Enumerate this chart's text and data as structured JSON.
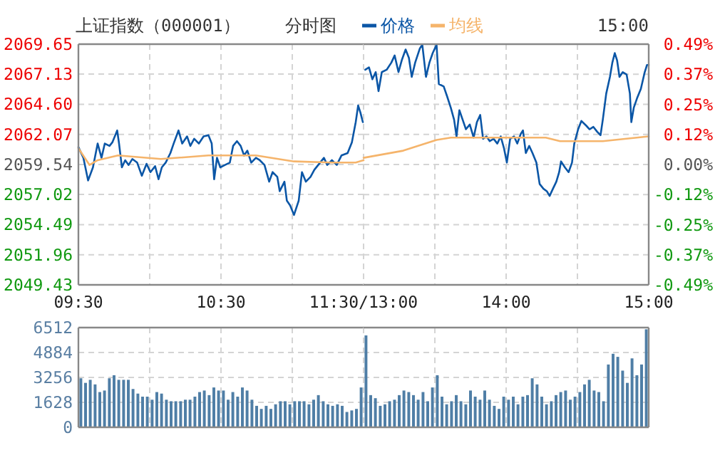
{
  "chart_data": [
    {
      "type": "line",
      "title": "上证指数（000001）",
      "subtitle": "分时图",
      "legend": "top",
      "grid": true,
      "xlim": [
        9.5,
        11.5
      ],
      "xticks": [
        {
          "value": 9.5,
          "label": "09:30"
        },
        {
          "value": 10.5,
          "label": "10:30"
        },
        {
          "value": 11.5,
          "label": "11:30/13:00"
        }
      ],
      "ylim": [
        2049.43,
        2069.65
      ],
      "yticks": [
        2049.43,
        2051.96,
        2054.49,
        2057.02,
        2059.54,
        2062.07,
        {
          "value": 2064.6,
          "label": "2064.60"
        },
        2067.13,
        2069.65
      ],
      "series": [
        {
          "name": "价格",
          "color": "#0b56a6",
          "x": [
            9.5,
            9.535,
            9.568,
            9.602,
            9.635,
            9.662,
            9.685,
            9.718,
            9.738,
            9.772,
            9.785,
            9.805,
            9.828,
            9.852,
            9.878,
            9.912,
            9.945,
            9.978,
            10.005,
            10.038,
            10.062,
            10.085,
            10.112,
            10.145,
            10.168,
            10.202,
            10.228,
            10.262,
            10.285,
            10.312,
            10.345,
            10.378,
            10.412,
            10.435,
            10.452,
            10.472,
            10.495,
            10.528,
            10.562,
            10.585,
            10.612,
            10.638,
            10.662,
            10.685,
            10.712,
            10.745,
            10.772,
            10.805,
            10.838,
            10.862,
            10.895,
            10.912,
            10.945,
            10.962,
            10.985,
            11.012,
            11.045,
            11.068,
            11.095,
            11.128,
            11.155,
            11.195,
            11.222,
            11.245,
            11.278,
            11.312,
            11.345,
            11.388,
            11.418,
            11.445,
            11.462,
            11.478,
            11.495
          ],
          "values": [
            2061.0,
            2060.1,
            2058.2,
            2059.3,
            2061.3,
            2060.1,
            2061.3,
            2061.1,
            2061.4,
            2062.4,
            2061.3,
            2059.3,
            2059.9,
            2059.5,
            2060.0,
            2059.7,
            2058.6,
            2059.6,
            2058.9,
            2059.4,
            2058.3,
            2059.3,
            2059.7,
            2060.5,
            2061.3,
            2062.4,
            2061.3,
            2061.9,
            2061.1,
            2061.7,
            2061.3,
            2061.9,
            2062.0,
            2061.3,
            2058.3,
            2060.1,
            2059.3,
            2059.5,
            2059.7,
            2061.1,
            2061.5,
            2061.1,
            2060.3,
            2060.7,
            2059.7,
            2060.1,
            2059.9,
            2059.5,
            2058.1,
            2058.9,
            2058.5,
            2057.3,
            2058.1,
            2056.5,
            2056.1,
            2055.3,
            2056.5,
            2058.9,
            2058.1,
            2058.5,
            2059.1,
            2059.7,
            2060.1,
            2059.5,
            2059.9,
            2059.5,
            2060.3,
            2060.5,
            2061.4,
            2063.1,
            2064.5,
            2063.9,
            2063.1
          ]
        },
        {
          "name": "均线",
          "color": "#f5b46b",
          "x": [
            9.5,
            9.578,
            9.635,
            9.778,
            10.078,
            10.412,
            10.745,
            11.012,
            11.278,
            11.445,
            11.5
          ],
          "values": [
            2060.9,
            2059.5,
            2059.9,
            2060.3,
            2060.0,
            2060.3,
            2060.3,
            2059.8,
            2059.7,
            2059.7,
            2059.9
          ]
        }
      ]
    },
    {
      "type": "line",
      "annotations": [
        "15:00"
      ],
      "grid": true,
      "tick_labels": "x",
      "xlim": [
        13,
        15
      ],
      "xticks": [
        {
          "value": 14,
          "label": "14:00"
        },
        {
          "value": 15,
          "label": "15:00"
        }
      ],
      "ylim": [
        2049.43,
        2069.65
      ],
      "y2lim": [
        -0.49,
        0.49
      ],
      "y2ticks": [
        {
          "value": -0.49,
          "label": "-0.49%"
        },
        {
          "value": -0.3675,
          "label": "-0.37%"
        },
        {
          "value": -0.245,
          "label": "-0.25%"
        },
        {
          "value": -0.1225,
          "label": "-0.12%"
        },
        {
          "value": 0,
          "label": "0.00%"
        },
        {
          "value": 0.1225,
          "label": "0.12%"
        },
        {
          "value": 0.245,
          "label": "0.25%"
        },
        {
          "value": 0.3675,
          "label": "0.37%"
        },
        {
          "value": 0.49,
          "label": "0.49%"
        }
      ],
      "series": [
        {
          "color": "#0b56a6",
          "x": [
            13.012,
            13.038,
            13.062,
            13.085,
            13.105,
            13.128,
            13.162,
            13.195,
            13.218,
            13.245,
            13.268,
            13.295,
            13.318,
            13.338,
            13.362,
            13.395,
            13.412,
            13.438,
            13.462,
            13.485,
            13.512,
            13.528,
            13.562,
            13.585,
            13.612,
            13.635,
            13.652,
            13.672,
            13.695,
            13.718,
            13.745,
            13.772,
            13.795,
            13.818,
            13.838,
            13.862,
            13.885,
            13.912,
            13.938,
            13.962,
            13.985,
            14.005,
            14.028,
            14.055,
            14.078,
            14.102,
            14.118,
            14.138,
            14.162,
            14.185,
            14.212,
            14.235,
            14.262,
            14.285,
            14.305,
            14.328,
            14.352,
            14.372,
            14.385,
            14.412,
            14.438,
            14.462,
            14.478,
            14.505,
            14.528,
            14.562,
            14.585,
            14.612,
            14.638,
            14.662,
            14.678,
            14.702,
            14.728,
            14.745,
            14.762,
            14.778,
            14.795,
            14.818,
            14.845,
            14.868,
            14.878,
            14.895,
            14.918,
            14.945,
            14.972,
            14.988,
            15
          ],
          "values": [
            2067.5,
            2067.7,
            2066.7,
            2067.3,
            2065.7,
            2067.3,
            2067.5,
            2068.1,
            2068.7,
            2067.3,
            2068.3,
            2069.2,
            2068.5,
            2066.9,
            2068.1,
            2069.3,
            2069.6,
            2066.9,
            2068.1,
            2068.9,
            2069.6,
            2066.3,
            2066.1,
            2065.3,
            2064.3,
            2063.3,
            2061.9,
            2064.1,
            2063.3,
            2062.5,
            2062.9,
            2061.8,
            2063.1,
            2063.7,
            2061.7,
            2061.9,
            2061.5,
            2061.7,
            2061.3,
            2061.9,
            2060.9,
            2059.7,
            2061.7,
            2061.9,
            2061.3,
            2062.1,
            2062.4,
            2060.5,
            2061.1,
            2060.5,
            2059.7,
            2057.9,
            2057.5,
            2057.3,
            2056.9,
            2057.5,
            2058.1,
            2058.9,
            2059.8,
            2059.3,
            2058.9,
            2059.7,
            2061.3,
            2062.5,
            2063.2,
            2062.8,
            2062.5,
            2062.7,
            2062.3,
            2062.0,
            2063.3,
            2065.5,
            2066.9,
            2068.1,
            2068.9,
            2068.3,
            2066.9,
            2067.3,
            2067.1,
            2065.5,
            2063.1,
            2064.3,
            2065.1,
            2065.9,
            2067.3,
            2067.9,
            2067.9
          ]
        },
        {
          "color": "#f5b46b",
          "x": [
            13,
            13.278,
            13.512,
            13.612,
            14.278,
            14.378,
            14.678,
            15
          ],
          "values": [
            2060.1,
            2060.7,
            2061.6,
            2061.8,
            2061.8,
            2061.5,
            2061.5,
            2061.9
          ]
        }
      ]
    },
    {
      "type": "bar",
      "grid": true,
      "tick_labels": "y",
      "color": "#4f7ea6",
      "xlim": [
        9.5,
        11.5
      ],
      "xticks": [
        9.5,
        10.5,
        11.5
      ],
      "ylim": [
        0,
        6512
      ],
      "yticks": [
        0,
        1628,
        3256,
        4884,
        6512
      ],
      "x": [
        9.517,
        9.55,
        9.583,
        9.617,
        9.65,
        9.683,
        9.717,
        9.75,
        9.783,
        9.817,
        9.85,
        9.883,
        9.917,
        9.95,
        9.983,
        10.017,
        10.05,
        10.083,
        10.117,
        10.15,
        10.183,
        10.217,
        10.25,
        10.283,
        10.317,
        10.35,
        10.383,
        10.417,
        10.45,
        10.483,
        10.517,
        10.55,
        10.583,
        10.617,
        10.65,
        10.683,
        10.717,
        10.75,
        10.783,
        10.817,
        10.85,
        10.883,
        10.917,
        10.95,
        10.983,
        11.017,
        11.05,
        11.083,
        11.117,
        11.15,
        11.183,
        11.217,
        11.25,
        11.283,
        11.317,
        11.35,
        11.383,
        11.417,
        11.45,
        11.483
      ],
      "values": [
        3200,
        2900,
        3100,
        2800,
        2300,
        2400,
        3200,
        3400,
        3100,
        3100,
        3100,
        2500,
        2200,
        2000,
        2000,
        1800,
        2300,
        2200,
        1800,
        1700,
        1700,
        1700,
        1800,
        1800,
        2000,
        2300,
        2400,
        2100,
        2600,
        2400,
        2400,
        1800,
        2300,
        2000,
        2600,
        2400,
        1800,
        1400,
        1200,
        1400,
        1200,
        1500,
        1700,
        1700,
        1500,
        1700,
        1700,
        1700,
        1500,
        1800,
        2100,
        1700,
        1500,
        1400,
        1500,
        1400,
        1000,
        1100,
        1200,
        2600
      ]
    },
    {
      "type": "bar",
      "grid": true,
      "tick_labels": false,
      "color": "#4f7ea6",
      "xlim": [
        13,
        15
      ],
      "xticks": [
        13,
        14,
        15
      ],
      "ylim": [
        0,
        6512
      ],
      "x": [
        13.017,
        13.05,
        13.083,
        13.117,
        13.15,
        13.183,
        13.217,
        13.25,
        13.283,
        13.317,
        13.35,
        13.383,
        13.417,
        13.45,
        13.483,
        13.517,
        13.55,
        13.583,
        13.617,
        13.65,
        13.683,
        13.717,
        13.75,
        13.783,
        13.817,
        13.85,
        13.883,
        13.917,
        13.95,
        13.983,
        14.017,
        14.05,
        14.083,
        14.117,
        14.15,
        14.183,
        14.217,
        14.25,
        14.283,
        14.317,
        14.35,
        14.383,
        14.417,
        14.45,
        14.483,
        14.517,
        14.55,
        14.583,
        14.617,
        14.65,
        14.683,
        14.717,
        14.75,
        14.783,
        14.817,
        14.85,
        14.883,
        14.917,
        14.95,
        14.983
      ],
      "values": [
        6000,
        2100,
        1900,
        1400,
        1500,
        1700,
        1800,
        2100,
        2400,
        2300,
        2100,
        1800,
        2300,
        1700,
        2600,
        3400,
        2000,
        1500,
        1700,
        2100,
        1700,
        1500,
        2400,
        2000,
        1800,
        2400,
        1800,
        1400,
        1200,
        2000,
        1800,
        2000,
        1500,
        2000,
        2100,
        3200,
        2800,
        2000,
        1500,
        1700,
        2100,
        2300,
        2400,
        1800,
        2000,
        2300,
        2800,
        3100,
        2400,
        2300,
        1700,
        4100,
        4800,
        4600,
        3700,
        2900,
        4500,
        3400,
        4100,
        6400
      ]
    }
  ]
}
